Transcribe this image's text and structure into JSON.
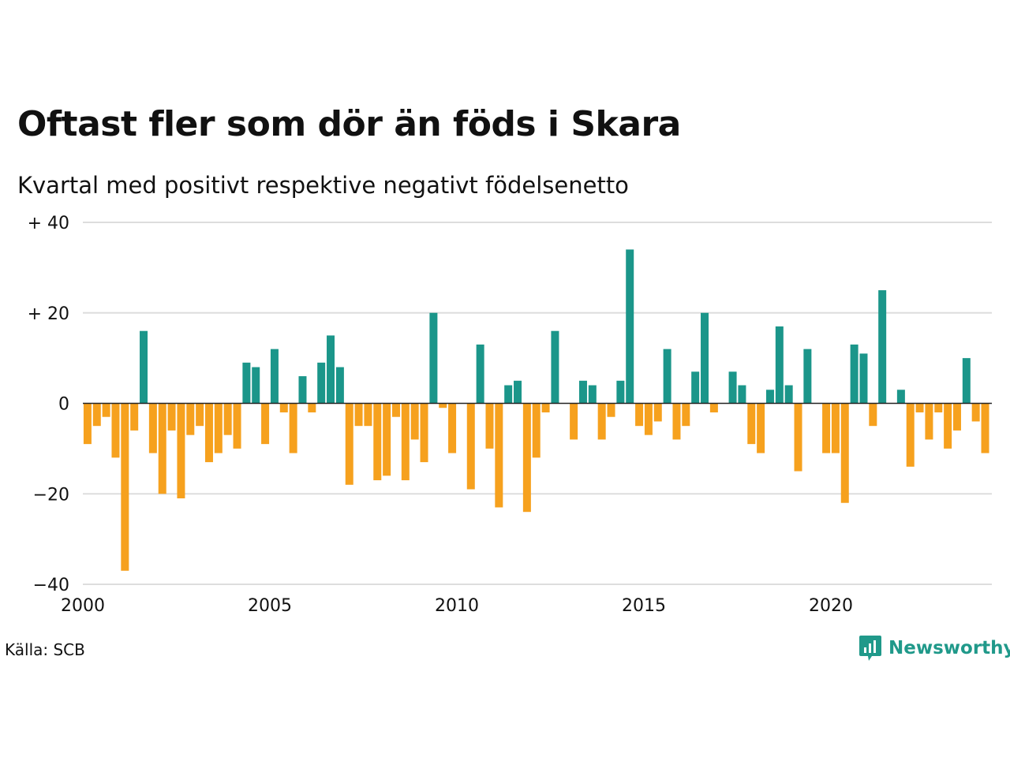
{
  "colors": {
    "positive": "#1b968a",
    "negative": "#f6a11e",
    "grid": "#dddddd",
    "zero_line": "#222222",
    "logo": "#20998a"
  },
  "chart_data": {
    "type": "bar",
    "title": "Oftast fler som dör än föds i Skara",
    "subtitle": "Kvartal med positivt respektive negativt födelsenetto",
    "xlabel": "",
    "ylabel": "",
    "ylim": [
      -40,
      40
    ],
    "yticks": [
      {
        "value": 40,
        "label": "+ 40"
      },
      {
        "value": 20,
        "label": "+ 20"
      },
      {
        "value": 0,
        "label": "0"
      },
      {
        "value": -20,
        "label": "−20"
      },
      {
        "value": -40,
        "label": "−40"
      }
    ],
    "xticks": [
      "2000",
      "2005",
      "2010",
      "2015",
      "2020"
    ],
    "grid": true,
    "x_start": "2000 Q1",
    "values": [
      -9,
      -5,
      -3,
      -12,
      -37,
      -6,
      16,
      -11,
      -20,
      -6,
      -21,
      -7,
      -5,
      -13,
      -11,
      -7,
      -10,
      9,
      8,
      -9,
      12,
      -2,
      -11,
      6,
      -2,
      9,
      15,
      8,
      -18,
      -5,
      -5,
      -17,
      -16,
      -3,
      -17,
      -8,
      -13,
      20,
      -1,
      -11,
      0,
      -19,
      13,
      -10,
      -23,
      4,
      5,
      -24,
      -12,
      -2,
      16,
      0,
      -8,
      5,
      4,
      -8,
      -3,
      5,
      34,
      -5,
      -7,
      -4,
      12,
      -8,
      -5,
      7,
      20,
      -2,
      0,
      7,
      4,
      -9,
      -11,
      3,
      17,
      4,
      -15,
      12,
      0,
      -11,
      -11,
      -22,
      13,
      11,
      -5,
      25,
      0,
      3,
      -14,
      -2,
      -8,
      -2,
      -10,
      -6,
      10,
      -4,
      -11
    ]
  },
  "source": "Källa: SCB",
  "logo_text": "Newsworthy"
}
